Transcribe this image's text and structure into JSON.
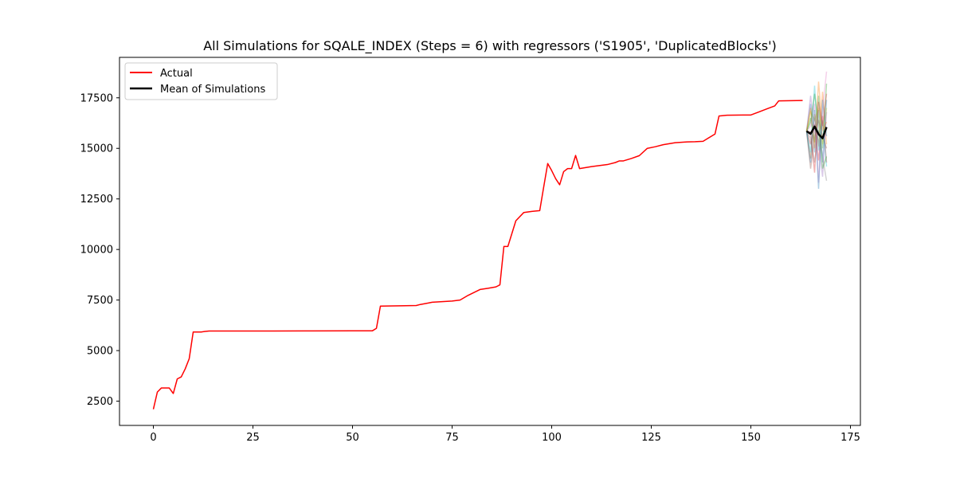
{
  "chart_data": {
    "type": "line",
    "title": "All Simulations for SQALE_INDEX (Steps = 6) with regressors ('S1905', 'DuplicatedBlocks')",
    "xlabel": "",
    "ylabel": "",
    "xlim": [
      -8.5,
      177.5
    ],
    "ylim": [
      1300,
      19500
    ],
    "xticks": [
      0,
      25,
      50,
      75,
      100,
      125,
      150,
      175
    ],
    "yticks": [
      2500,
      5000,
      7500,
      10000,
      12500,
      15000,
      17500
    ],
    "grid": false,
    "legend": {
      "placement": "top-left",
      "entries": [
        "Actual",
        "Mean of Simulations"
      ]
    },
    "colors": {
      "actual": "#ff0000",
      "mean": "#000000"
    },
    "actual": {
      "name": "Actual",
      "x": [
        0,
        1,
        2,
        3,
        4,
        5,
        6,
        7,
        8,
        9,
        10,
        11,
        12,
        13,
        14,
        20,
        30,
        40,
        50,
        55,
        56,
        57,
        60,
        66,
        67,
        69,
        70,
        75,
        77,
        79,
        82,
        84,
        86,
        87,
        88,
        89,
        91,
        93,
        95,
        97,
        98,
        99,
        100,
        101,
        102,
        103,
        104,
        105,
        106,
        107,
        110,
        114,
        116,
        117,
        118,
        120,
        122,
        124,
        126,
        128,
        131,
        134,
        136,
        138,
        141,
        142,
        144,
        148,
        150,
        152,
        154,
        156,
        157,
        163
      ],
      "y": [
        2100,
        2950,
        3150,
        3150,
        3150,
        2880,
        3600,
        3700,
        4100,
        4600,
        5920,
        5920,
        5920,
        5950,
        5970,
        5970,
        5970,
        5975,
        5980,
        5980,
        6100,
        7200,
        7210,
        7230,
        7280,
        7350,
        7390,
        7450,
        7500,
        7730,
        8020,
        8080,
        8150,
        8250,
        10150,
        10150,
        11420,
        11830,
        11880,
        11920,
        13100,
        14250,
        13900,
        13500,
        13200,
        13850,
        14000,
        14000,
        14650,
        14000,
        14100,
        14200,
        14300,
        14380,
        14380,
        14500,
        14640,
        15000,
        15080,
        15180,
        15280,
        15320,
        15330,
        15350,
        15710,
        16600,
        16640,
        16650,
        16650,
        16800,
        16950,
        17100,
        17350,
        17370
      ]
    },
    "mean": {
      "name": "Mean of Simulations",
      "x": [
        164,
        165,
        166,
        167,
        168,
        169
      ],
      "y": [
        15850,
        15720,
        16080,
        15700,
        15500,
        16050
      ]
    },
    "simulations": [
      {
        "x": [
          164,
          165,
          166,
          167,
          168,
          169
        ],
        "y": [
          15850,
          17200,
          14800,
          16900,
          14300,
          17400
        ],
        "color": "#1f77b4"
      },
      {
        "x": [
          164,
          165,
          166,
          167,
          168,
          169
        ],
        "y": [
          15850,
          14500,
          16700,
          15100,
          17800,
          15200
        ],
        "color": "#ff7f0e"
      },
      {
        "x": [
          164,
          165,
          166,
          167,
          168,
          169
        ],
        "y": [
          15850,
          16500,
          15300,
          17600,
          15000,
          18200
        ],
        "color": "#2ca02c"
      },
      {
        "x": [
          164,
          165,
          166,
          167,
          168,
          169
        ],
        "y": [
          15850,
          15200,
          16200,
          14400,
          16600,
          14300
        ],
        "color": "#d62728"
      },
      {
        "x": [
          164,
          165,
          166,
          167,
          168,
          169
        ],
        "y": [
          15850,
          17600,
          15800,
          15400,
          13600,
          16800
        ],
        "color": "#9467bd"
      },
      {
        "x": [
          164,
          165,
          166,
          167,
          168,
          169
        ],
        "y": [
          15850,
          14000,
          15600,
          16400,
          15600,
          15000
        ],
        "color": "#8c564b"
      },
      {
        "x": [
          164,
          165,
          166,
          167,
          168,
          169
        ],
        "y": [
          15850,
          16100,
          17200,
          13300,
          16900,
          18800
        ],
        "color": "#e377c2"
      },
      {
        "x": [
          164,
          165,
          166,
          167,
          168,
          169
        ],
        "y": [
          15850,
          15500,
          14300,
          15900,
          14600,
          13400
        ],
        "color": "#7f7f7f"
      },
      {
        "x": [
          164,
          165,
          166,
          167,
          168,
          169
        ],
        "y": [
          15850,
          16800,
          16400,
          17000,
          15200,
          17000
        ],
        "color": "#bcbd22"
      },
      {
        "x": [
          164,
          165,
          166,
          167,
          168,
          169
        ],
        "y": [
          15850,
          14800,
          18100,
          14900,
          16400,
          14100
        ],
        "color": "#17becf"
      },
      {
        "x": [
          164,
          165,
          166,
          167,
          168,
          169
        ],
        "y": [
          15850,
          17000,
          15000,
          18300,
          15900,
          16300
        ],
        "color": "#ff7f0e"
      },
      {
        "x": [
          164,
          165,
          166,
          167,
          168,
          169
        ],
        "y": [
          15850,
          14300,
          16900,
          13000,
          17400,
          15600
        ],
        "color": "#1f77b4"
      },
      {
        "x": [
          164,
          165,
          166,
          167,
          168,
          169
        ],
        "y": [
          15850,
          16300,
          17700,
          16200,
          14000,
          14600
        ],
        "color": "#2ca02c"
      },
      {
        "x": [
          164,
          165,
          166,
          167,
          168,
          169
        ],
        "y": [
          15850,
          15800,
          13800,
          17300,
          16100,
          17700
        ],
        "color": "#d62728"
      }
    ]
  }
}
